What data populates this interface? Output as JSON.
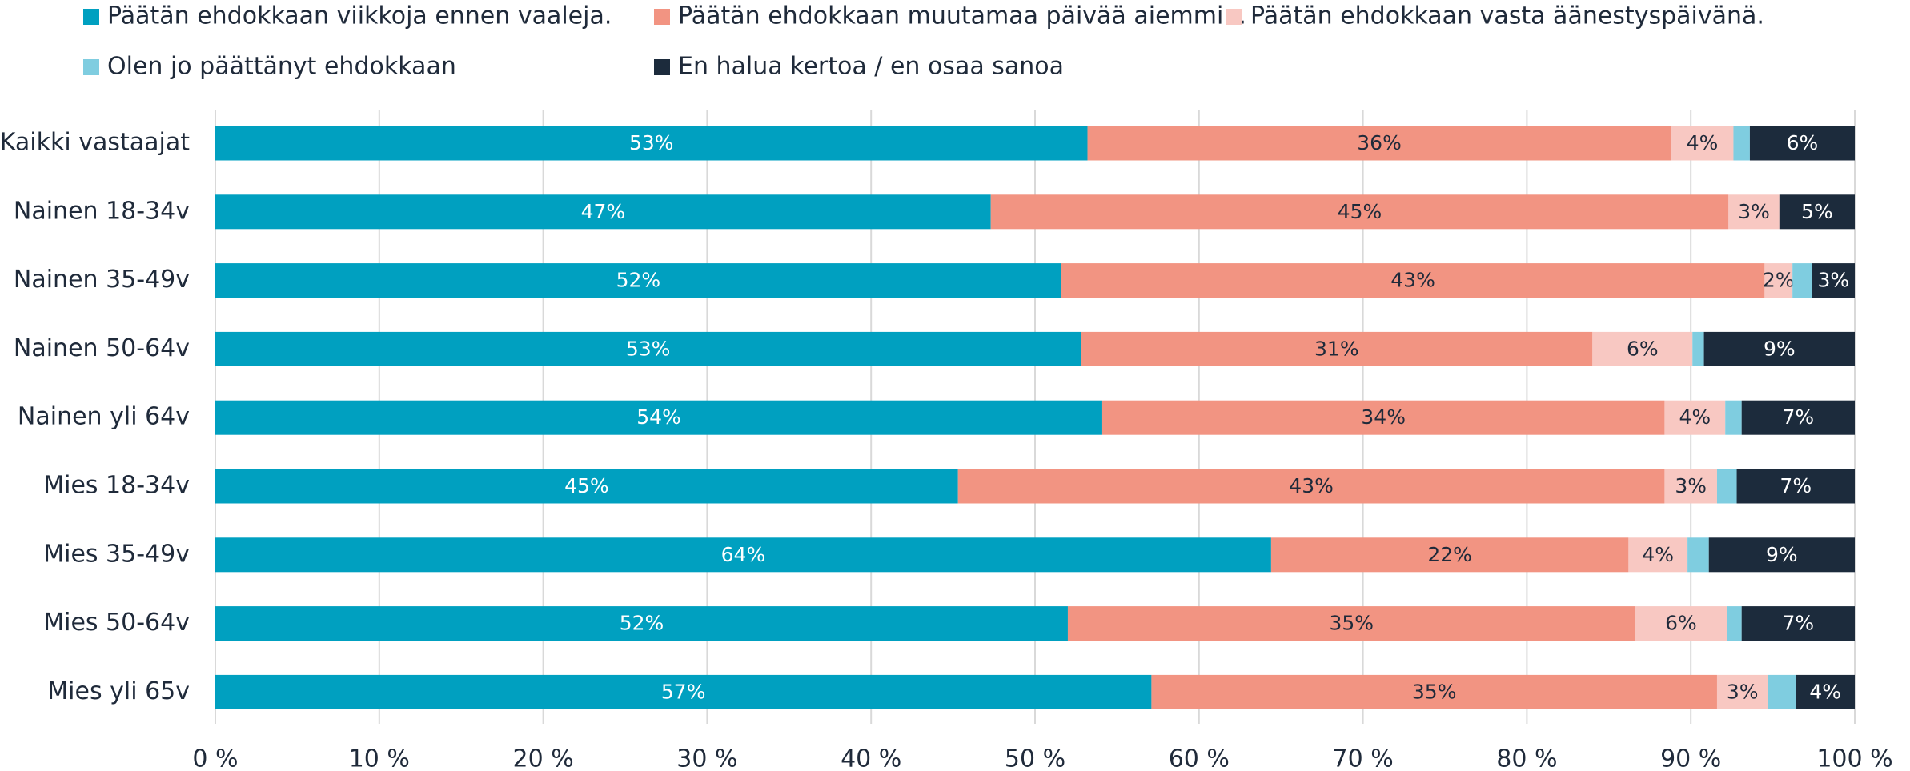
{
  "chart_data": {
    "type": "stacked-barh",
    "categories": [
      "Kaikki vastaajat",
      "Nainen 18-34v",
      "Nainen 35-49v",
      "Nainen 50-64v",
      "Nainen yli 64v",
      "Mies 18-34v",
      "Mies 35-49v",
      "Mies 50-64v",
      "Mies yli 65v"
    ],
    "series": [
      {
        "name": "Päätän ehdokkaan viikkoja ennen vaaleja.",
        "color": "#00a0c0",
        "values": [
          53.2,
          47.3,
          51.6,
          52.8,
          54.1,
          45.3,
          64.4,
          52.0,
          57.1
        ],
        "value_labels": [
          "53%",
          "47%",
          "52%",
          "53%",
          "54%",
          "45%",
          "64%",
          "52%",
          "57%"
        ]
      },
      {
        "name": "Päätän ehdokkaan muutamaa päivää aiemmin.",
        "color": "#f29482",
        "values": [
          35.6,
          45.0,
          42.9,
          31.2,
          34.3,
          43.1,
          21.8,
          34.6,
          34.5
        ],
        "value_labels": [
          "36%",
          "45%",
          "43%",
          "31%",
          "34%",
          "43%",
          "22%",
          "35%",
          "35%"
        ]
      },
      {
        "name": "Päätän ehdokkaan vasta äänestyspäivänä.",
        "color": "#f8c8c2",
        "values": [
          3.8,
          3.1,
          1.7,
          6.1,
          3.7,
          3.2,
          3.6,
          5.6,
          3.1
        ],
        "value_labels": [
          "4%",
          "3%",
          "2%",
          "6%",
          "4%",
          "3%",
          "4%",
          "6%",
          "3%"
        ]
      },
      {
        "name": "Olen jo päättänyt ehdokkaan",
        "color": "#7fcde0",
        "values": [
          1.0,
          0,
          1.2,
          0.7,
          1.0,
          1.2,
          1.3,
          0.9,
          1.7
        ]
      },
      {
        "name": "En halua kertoa / en osaa sanoa",
        "color": "#1c2b3c",
        "values": [
          6.4,
          4.6,
          2.6,
          9.2,
          6.9,
          7.2,
          8.9,
          6.9,
          3.6
        ],
        "value_labels": [
          "6%",
          "5%",
          "3%",
          "9%",
          "7%",
          "7%",
          "9%",
          "7%",
          "4%"
        ]
      }
    ],
    "xlim": [
      0,
      100
    ],
    "xticks": [
      {
        "value": 0,
        "label": "0 %"
      },
      {
        "value": 10,
        "label": "10 %"
      },
      {
        "value": 20,
        "label": "20 %"
      },
      {
        "value": 30,
        "label": "30 %"
      },
      {
        "value": 40,
        "label": "40 %"
      },
      {
        "value": 50,
        "label": "50 %"
      },
      {
        "value": 60,
        "label": "60 %"
      },
      {
        "value": 70,
        "label": "70 %"
      },
      {
        "value": 80,
        "label": "80 %"
      },
      {
        "value": 90,
        "label": "90 %"
      },
      {
        "value": 100,
        "label": "100 %"
      }
    ],
    "grid": true,
    "legend": "top"
  }
}
